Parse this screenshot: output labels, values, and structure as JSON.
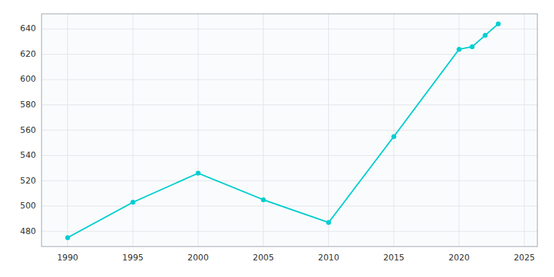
{
  "chart_data": {
    "type": "line",
    "x": [
      1990,
      1995,
      2000,
      2005,
      2010,
      2015,
      2020,
      2021,
      2022,
      2023
    ],
    "values": [
      475,
      503,
      526,
      505,
      487,
      555,
      624,
      626,
      635,
      644
    ],
    "color": "#00CED1",
    "marker": "circle",
    "xlim": [
      1988,
      2026
    ],
    "ylim": [
      468,
      652
    ],
    "xticks": [
      1990,
      1995,
      2000,
      2005,
      2010,
      2015,
      2020,
      2025
    ],
    "yticks": [
      480,
      500,
      520,
      540,
      560,
      580,
      600,
      620,
      640
    ],
    "grid": true
  }
}
